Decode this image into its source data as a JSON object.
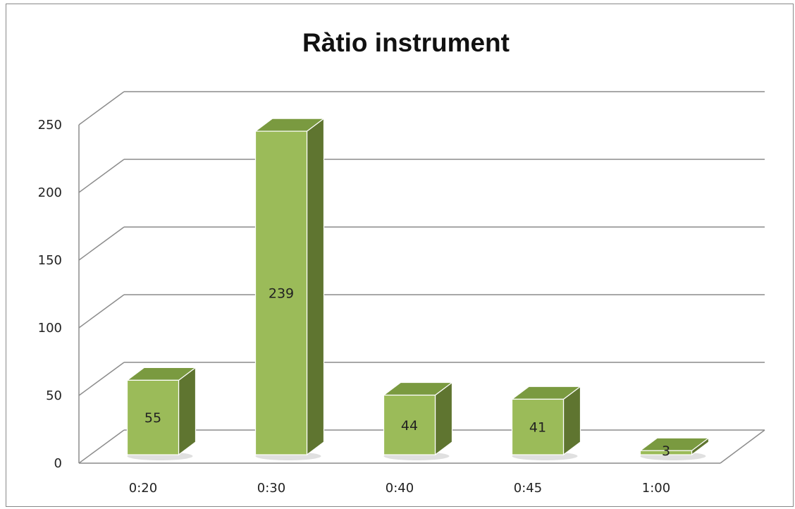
{
  "chart_data": {
    "type": "bar",
    "title": "Ràtio instrument",
    "categories": [
      "0:20",
      "0:30",
      "0:40",
      "0:45",
      "1:00"
    ],
    "values": [
      55,
      239,
      44,
      41,
      3
    ],
    "data_labels": [
      "55",
      "239",
      "44",
      "41",
      "3"
    ],
    "xlabel": "",
    "ylabel": "",
    "ylim": [
      0,
      250
    ],
    "y_ticks": [
      "0",
      "50",
      "100",
      "150",
      "200",
      "250"
    ],
    "grid": true,
    "legend": "none",
    "style": "3d-column",
    "colors": {
      "bar_front": "#9bbb59",
      "bar_side": "#5f7530",
      "bar_top": "#7a9a40",
      "gridline": "#8c8c8c"
    }
  }
}
